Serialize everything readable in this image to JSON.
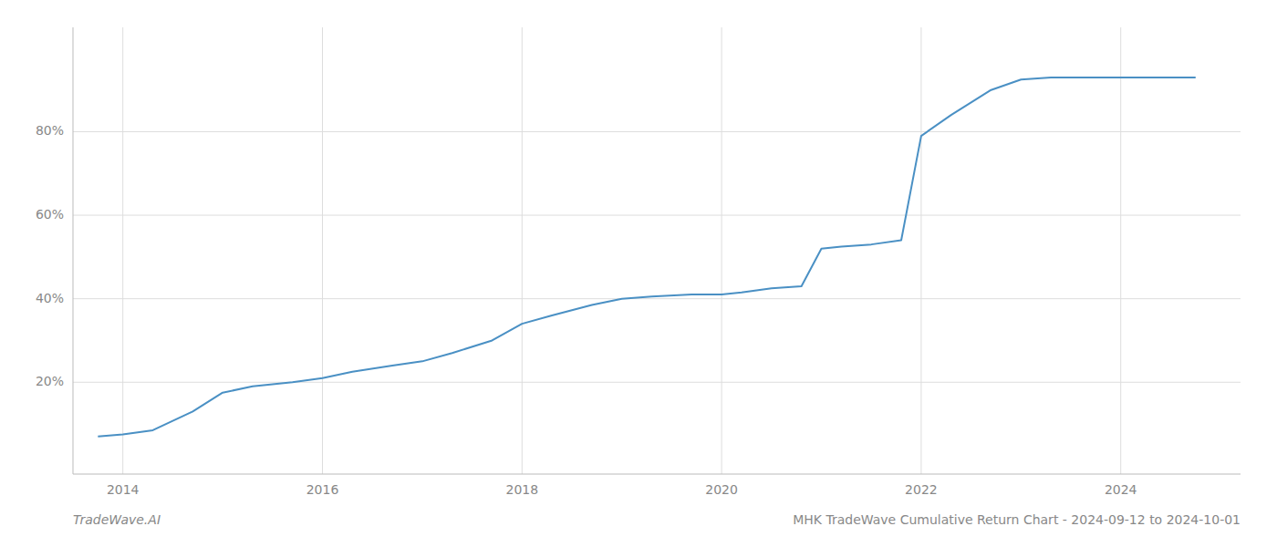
{
  "chart_data": {
    "type": "line",
    "title": "MHK TradeWave Cumulative Return Chart - 2024-09-12 to 2024-10-01",
    "annotations": [
      "TradeWave.AI"
    ],
    "x": [
      2013.75,
      2014.0,
      2014.3,
      2014.7,
      2015.0,
      2015.3,
      2015.7,
      2016.0,
      2016.3,
      2016.7,
      2017.0,
      2017.3,
      2017.7,
      2018.0,
      2018.3,
      2018.7,
      2019.0,
      2019.3,
      2019.7,
      2020.0,
      2020.2,
      2020.5,
      2020.8,
      2021.0,
      2021.2,
      2021.5,
      2021.8,
      2022.0,
      2022.3,
      2022.7,
      2023.0,
      2023.3,
      2023.5,
      2024.0,
      2024.75
    ],
    "values": [
      7,
      7.5,
      8.5,
      13,
      17.5,
      19,
      20,
      21,
      22.5,
      24,
      25,
      27,
      30,
      34,
      36,
      38.5,
      40,
      40.5,
      41,
      41,
      41.5,
      42.5,
      43,
      52,
      52.5,
      53,
      54,
      79,
      84,
      90,
      92.5,
      93,
      93,
      93,
      93
    ],
    "color": "#4a90c4",
    "xlim": [
      2013.5,
      2025.2
    ],
    "ylim": [
      -2,
      105
    ],
    "xticks": [
      2014,
      2016,
      2018,
      2020,
      2022,
      2024
    ],
    "yticks": [
      {
        "value": 20,
        "label": "20%"
      },
      {
        "value": 40,
        "label": "40%"
      },
      {
        "value": 60,
        "label": "60%"
      },
      {
        "value": 80,
        "label": "80%"
      }
    ],
    "grid": true
  }
}
